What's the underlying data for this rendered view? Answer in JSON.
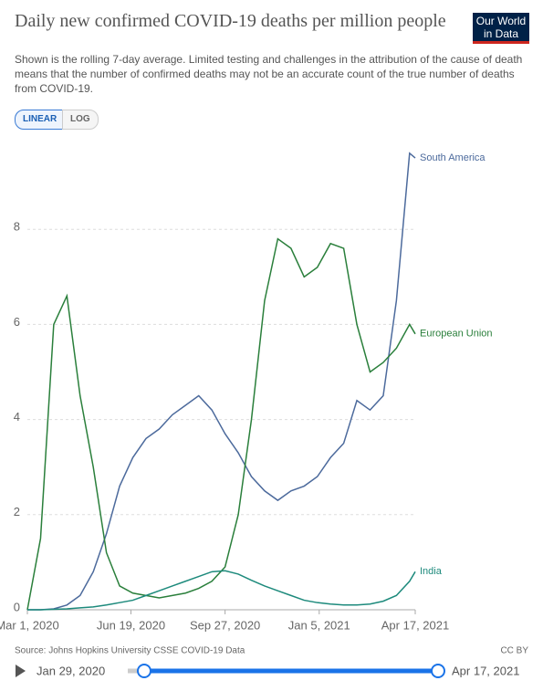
{
  "chart_data": {
    "type": "line",
    "title": "Daily new confirmed COVID-19 deaths per million people",
    "subtitle": "Shown is the rolling 7-day average. Limited testing and challenges in the attribution of the cause of death means that the number of confirmed deaths may not be an accurate count of the true number of deaths from COVID-19.",
    "x": [
      "2020-03-01",
      "2020-03-15",
      "2020-03-29",
      "2020-04-12",
      "2020-04-26",
      "2020-05-10",
      "2020-05-24",
      "2020-06-07",
      "2020-06-21",
      "2020-07-05",
      "2020-07-19",
      "2020-08-02",
      "2020-08-16",
      "2020-08-30",
      "2020-09-13",
      "2020-09-27",
      "2020-10-11",
      "2020-10-25",
      "2020-11-08",
      "2020-11-22",
      "2020-12-06",
      "2020-12-20",
      "2021-01-03",
      "2021-01-17",
      "2021-01-31",
      "2021-02-14",
      "2021-02-28",
      "2021-03-14",
      "2021-03-28",
      "2021-04-11",
      "2021-04-17"
    ],
    "series": [
      {
        "name": "South America",
        "color": "#4c6a9c",
        "values": [
          0,
          0,
          0.02,
          0.1,
          0.3,
          0.8,
          1.6,
          2.6,
          3.2,
          3.6,
          3.8,
          4.1,
          4.3,
          4.5,
          4.2,
          3.7,
          3.3,
          2.8,
          2.5,
          2.3,
          2.5,
          2.6,
          2.8,
          3.2,
          3.5,
          4.4,
          4.2,
          4.5,
          6.5,
          9.6,
          9.5
        ]
      },
      {
        "name": "European Union",
        "color": "#2a7f3b",
        "values": [
          0,
          1.5,
          6.0,
          6.6,
          4.5,
          3.0,
          1.2,
          0.5,
          0.35,
          0.3,
          0.25,
          0.3,
          0.35,
          0.45,
          0.6,
          0.9,
          2.0,
          4.0,
          6.5,
          7.8,
          7.6,
          7.0,
          7.2,
          7.7,
          7.6,
          6.0,
          5.0,
          5.2,
          5.5,
          6.0,
          5.8
        ]
      },
      {
        "name": "India",
        "color": "#1d8a7c",
        "values": [
          0,
          0,
          0.01,
          0.02,
          0.04,
          0.06,
          0.1,
          0.15,
          0.2,
          0.3,
          0.4,
          0.5,
          0.6,
          0.7,
          0.8,
          0.82,
          0.75,
          0.62,
          0.5,
          0.4,
          0.3,
          0.2,
          0.15,
          0.12,
          0.1,
          0.1,
          0.12,
          0.18,
          0.3,
          0.6,
          0.8
        ]
      }
    ],
    "xlim": [
      "2020-03-01",
      "2021-04-17"
    ],
    "xticks": [
      {
        "value": "2020-03-01",
        "label": "Mar 1, 2020"
      },
      {
        "value": "2020-06-19",
        "label": "Jun 19, 2020"
      },
      {
        "value": "2020-09-27",
        "label": "Sep 27, 2020"
      },
      {
        "value": "2021-01-05",
        "label": "Jan 5, 2021"
      },
      {
        "value": "2021-04-17",
        "label": "Apr 17, 2021"
      }
    ],
    "ylim": [
      0,
      10
    ],
    "yticks": [
      0,
      2,
      4,
      6,
      8
    ],
    "grid": true,
    "log_scale": false,
    "source": "Source: Johns Hopkins University CSSE COVID-19 Data",
    "license": "CC BY"
  },
  "ui": {
    "logo": [
      "Our World",
      "in Data"
    ],
    "scale_buttons": [
      "LINEAR",
      "LOG"
    ],
    "timeline_start": "Jan 29, 2020",
    "timeline_end": "Apr 17, 2021"
  }
}
